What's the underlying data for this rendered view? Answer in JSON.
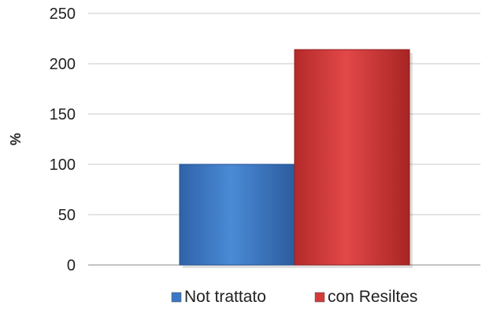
{
  "chart_data": {
    "type": "bar",
    "categories": [
      "Not trattato",
      "con Resiltes"
    ],
    "values": [
      100,
      214
    ],
    "colors": [
      "#3b77c4",
      "#d43a3a"
    ],
    "title": "",
    "xlabel": "",
    "ylabel": "%",
    "ylim": [
      0,
      250
    ],
    "yticks": [
      0,
      50,
      100,
      150,
      200,
      250
    ],
    "grid": true,
    "legend": {
      "position": "bottom",
      "entries": [
        {
          "name": "Not trattato",
          "color": "#3b77c4"
        },
        {
          "name": "con Resiltes",
          "color": "#d43a3a"
        }
      ]
    }
  }
}
